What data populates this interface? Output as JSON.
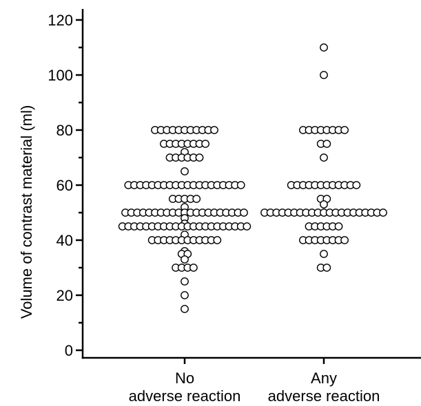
{
  "chart_data": {
    "type": "scatter",
    "title": "",
    "ylabel": "Volume of contrast material (ml)",
    "xlabel": "",
    "ylim": [
      0,
      120
    ],
    "yticks_major": [
      0,
      20,
      40,
      60,
      80,
      100,
      120
    ],
    "yticks_minor": [
      10,
      30,
      50,
      70,
      90,
      110
    ],
    "grid": false,
    "legend": "none",
    "categories": [
      {
        "line1": "No",
        "line2": "adverse reaction"
      },
      {
        "line1": "Any",
        "line2": "adverse reaction"
      }
    ],
    "series": [
      {
        "category": 0,
        "groups": [
          {
            "y": 80,
            "count": 11
          },
          {
            "y": 75,
            "count": 8
          },
          {
            "y": 72,
            "count": 1
          },
          {
            "y": 70,
            "count": 6
          },
          {
            "y": 65,
            "count": 1
          },
          {
            "y": 60,
            "count": 20
          },
          {
            "y": 55,
            "count": 5
          },
          {
            "y": 52,
            "count": 1
          },
          {
            "y": 50,
            "count": 21
          },
          {
            "y": 48,
            "count": 1
          },
          {
            "y": 46,
            "count": 1
          },
          {
            "y": 45,
            "count": 22
          },
          {
            "y": 42,
            "count": 1
          },
          {
            "y": 40,
            "count": 12
          },
          {
            "y": 36,
            "count": 1
          },
          {
            "y": 35,
            "count": 2
          },
          {
            "y": 33,
            "count": 1
          },
          {
            "y": 30,
            "count": 4
          },
          {
            "y": 25,
            "count": 1
          },
          {
            "y": 20,
            "count": 1
          },
          {
            "y": 15,
            "count": 1
          }
        ]
      },
      {
        "category": 1,
        "groups": [
          {
            "y": 110,
            "count": 1
          },
          {
            "y": 100,
            "count": 1
          },
          {
            "y": 80,
            "count": 8
          },
          {
            "y": 75,
            "count": 2
          },
          {
            "y": 70,
            "count": 1
          },
          {
            "y": 60,
            "count": 12
          },
          {
            "y": 55,
            "count": 2
          },
          {
            "y": 53,
            "count": 1
          },
          {
            "y": 50,
            "count": 21
          },
          {
            "y": 45,
            "count": 6
          },
          {
            "y": 40,
            "count": 8
          },
          {
            "y": 35,
            "count": 1
          },
          {
            "y": 30,
            "count": 2
          }
        ]
      }
    ],
    "colors": {
      "marker_fill": "#ffffff",
      "marker_stroke": "#000000",
      "axis": "#000000"
    }
  }
}
